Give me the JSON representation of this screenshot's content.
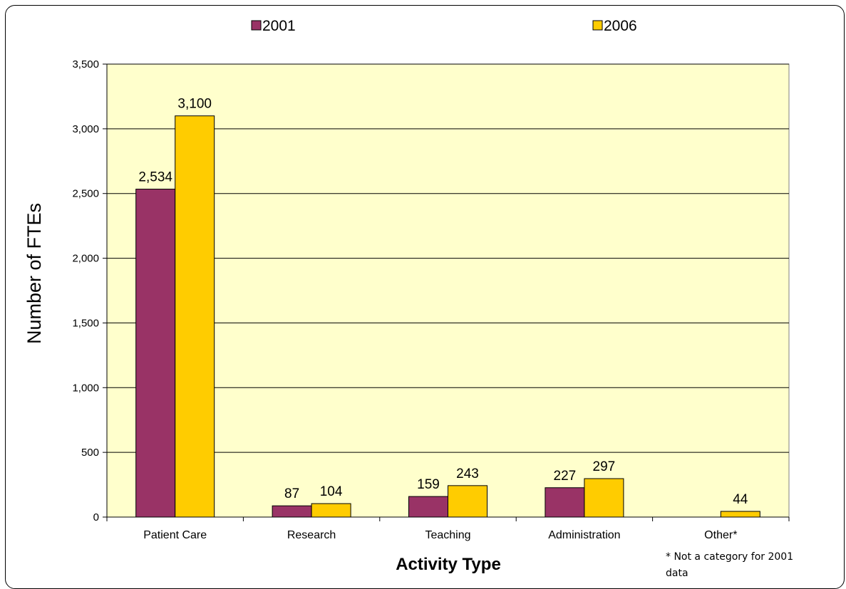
{
  "chart_data": {
    "type": "bar",
    "categories": [
      "Patient Care",
      "Research",
      "Teaching",
      "Administration",
      "Other*"
    ],
    "series": [
      {
        "name": "2001",
        "color": "#993366",
        "values": [
          2534,
          87,
          159,
          227,
          null
        ],
        "labels": [
          "2,534",
          "87",
          "159",
          "227",
          ""
        ]
      },
      {
        "name": "2006",
        "color": "#FFCC00",
        "values": [
          3100,
          104,
          243,
          297,
          44
        ],
        "labels": [
          "3,100",
          "104",
          "243",
          "297",
          "44"
        ]
      }
    ],
    "xlabel": "Activity Type",
    "ylabel": "Number of FTEs",
    "ylim": [
      0,
      3500
    ],
    "yticks": [
      0,
      500,
      1000,
      1500,
      2000,
      2500,
      3000,
      3500
    ],
    "ytick_labels": [
      "0",
      "500",
      "1,000",
      "1,500",
      "2,000",
      "2,500",
      "3,000",
      "3,500"
    ],
    "grid": true,
    "plot_background": "#FFFFCC",
    "legend": {
      "placement": "top"
    },
    "footnote_lines": [
      "* Not a category for 2001",
      "data"
    ]
  }
}
